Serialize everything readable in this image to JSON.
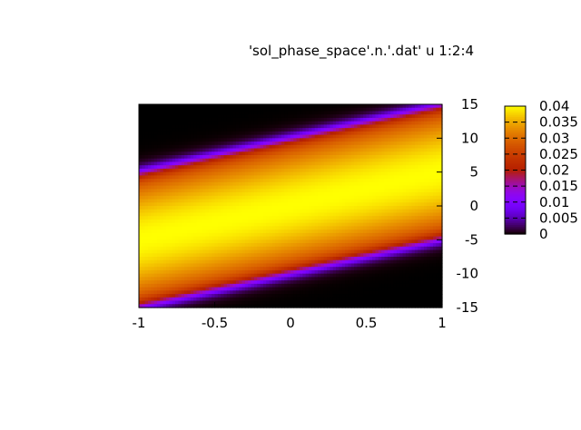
{
  "chart_data": {
    "type": "heatmap",
    "title": "'sol_phase_space'.n.'.dat' u 1:2:4",
    "xlabel": "",
    "ylabel": "",
    "xlim": [
      -1,
      1
    ],
    "ylim": [
      -15,
      15
    ],
    "x_ticks": [
      "-1",
      "-0.5",
      "0",
      "0.5",
      "1"
    ],
    "x_tick_values": [
      -1,
      -0.5,
      0,
      0.5,
      1
    ],
    "y_ticks": [
      "15",
      "10",
      "5",
      "0",
      "-5",
      "-10",
      "-15"
    ],
    "y_tick_values": [
      15,
      10,
      5,
      0,
      -5,
      -10,
      -15
    ],
    "colorbar": {
      "range": [
        0,
        0.04
      ],
      "ticks": [
        "0.04",
        "0.035",
        "0.03",
        "0.025",
        "0.02",
        "0.015",
        "0.01",
        "0.005",
        "0"
      ],
      "tick_values": [
        0.04,
        0.035,
        0.03,
        0.025,
        0.02,
        0.015,
        0.01,
        0.005,
        0
      ]
    },
    "colormap": "gnuplot-default-palette",
    "field": {
      "description_of_shape": "sheared band",
      "peak_value": 0.04,
      "band_center_y_at_x_minus_1": -5,
      "band_center_y_at_x_plus_1": 5,
      "band_half_width_y": 10,
      "gaussian_sigma_y": 10,
      "edge_softness_y": 0.5
    },
    "grid": false
  }
}
